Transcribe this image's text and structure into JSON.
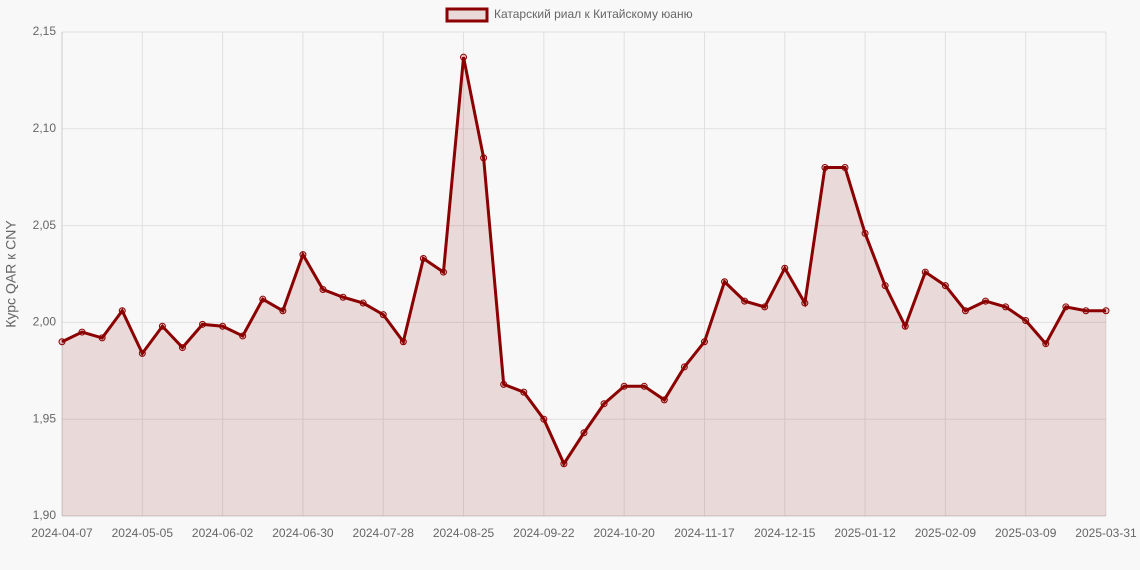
{
  "chart_data": {
    "type": "line",
    "y_label": "Курс QAR к CNY",
    "categories": [
      "2024-04-07",
      null,
      null,
      null,
      "2024-05-05",
      null,
      null,
      null,
      "2024-06-02",
      null,
      null,
      null,
      "2024-06-30",
      null,
      null,
      null,
      "2024-07-28",
      null,
      null,
      null,
      "2024-08-25",
      null,
      null,
      null,
      "2024-09-22",
      null,
      null,
      null,
      "2024-10-20",
      null,
      null,
      null,
      "2024-11-17",
      null,
      null,
      null,
      "2024-12-15",
      null,
      null,
      null,
      "2025-01-12",
      null,
      null,
      null,
      "2025-02-09",
      null,
      null,
      null,
      "2025-03-09",
      null,
      null,
      null,
      "2025-03-31"
    ],
    "series": [
      {
        "name": "Катарский риал к Китайскому юаню",
        "color": "#8b0000",
        "fill": "rgba(139,0,0,0.12)",
        "values": [
          1.99,
          1.995,
          1.992,
          2.006,
          1.984,
          1.998,
          1.987,
          1.999,
          1.998,
          1.993,
          2.012,
          2.006,
          2.035,
          2.017,
          2.013,
          2.01,
          2.004,
          1.99,
          2.033,
          2.026,
          2.137,
          2.085,
          1.968,
          1.964,
          1.95,
          1.927,
          1.943,
          1.958,
          1.967,
          1.967,
          1.96,
          1.977,
          1.99,
          2.021,
          2.011,
          2.008,
          2.028,
          2.01,
          2.08,
          2.08,
          2.046,
          2.019,
          1.998,
          2.026,
          2.019,
          2.006,
          2.011,
          2.008,
          2.001,
          1.989,
          2.008,
          2.006,
          2.006
        ]
      }
    ],
    "ylim": [
      1.9,
      2.15
    ],
    "yticks": [
      {
        "value": 1.9,
        "label": "1,90"
      },
      {
        "value": 1.95,
        "label": "1,95"
      },
      {
        "value": 2.0,
        "label": "2,00"
      },
      {
        "value": 2.05,
        "label": "2,05"
      },
      {
        "value": 2.1,
        "label": "2,10"
      },
      {
        "value": 2.15,
        "label": "2,15"
      }
    ],
    "grid": true,
    "legend": "top"
  }
}
